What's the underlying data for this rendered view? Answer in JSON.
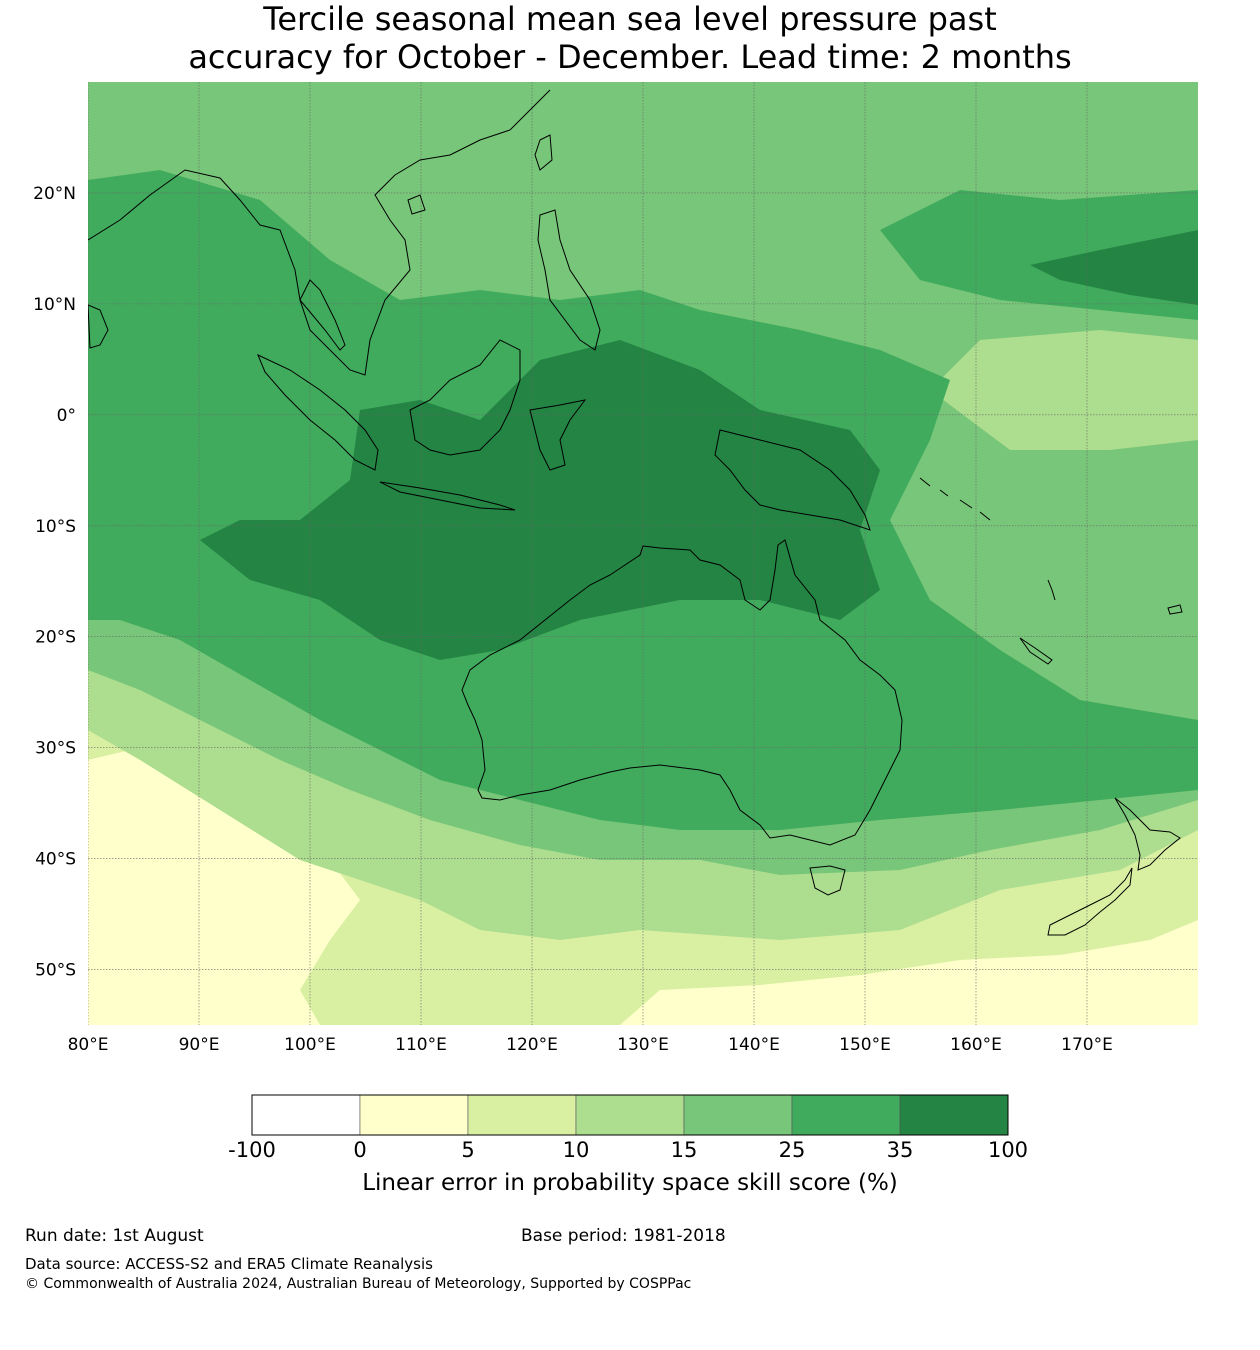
{
  "title": {
    "line1": "Tercile seasonal mean sea level pressure past",
    "line2": "accuracy for October - December. Lead time: 2 months"
  },
  "map": {
    "lon_range": [
      80,
      180
    ],
    "lat_range": [
      -55,
      30
    ],
    "lon_ticks": [
      {
        "value": 80,
        "label": "80°E"
      },
      {
        "value": 90,
        "label": "90°E"
      },
      {
        "value": 100,
        "label": "100°E"
      },
      {
        "value": 110,
        "label": "110°E"
      },
      {
        "value": 120,
        "label": "120°E"
      },
      {
        "value": 130,
        "label": "130°E"
      },
      {
        "value": 140,
        "label": "140°E"
      },
      {
        "value": 150,
        "label": "150°E"
      },
      {
        "value": 160,
        "label": "160°E"
      },
      {
        "value": 170,
        "label": "170°E"
      }
    ],
    "lat_ticks": [
      {
        "value": 20,
        "label": "20°N"
      },
      {
        "value": 10,
        "label": "10°N"
      },
      {
        "value": 0,
        "label": "0°"
      },
      {
        "value": -10,
        "label": "10°S"
      },
      {
        "value": -20,
        "label": "20°S"
      },
      {
        "value": -30,
        "label": "30°S"
      },
      {
        "value": -40,
        "label": "40°S"
      },
      {
        "value": -50,
        "label": "50°S"
      }
    ],
    "grid": true,
    "coastline_color": "#000000"
  },
  "colorbar": {
    "boundaries": [
      "-100",
      "0",
      "5",
      "10",
      "15",
      "25",
      "35",
      "100"
    ],
    "colors": [
      "#ffffff",
      "#ffffcc",
      "#d9f0a3",
      "#addd8e",
      "#78c679",
      "#41ab5d",
      "#238443"
    ],
    "label": "Linear error in probability space skill score (%)"
  },
  "footer": {
    "run_date": "Run date: 1st August",
    "base_period": "Base period: 1981-2018",
    "data_source": "Data source: ACCESS-S2 and ERA5 Climate Reanalysis",
    "copyright": "© Commonwealth of Australia 2024, Australian Bureau of Meteorology, Supported by COSPPac"
  }
}
